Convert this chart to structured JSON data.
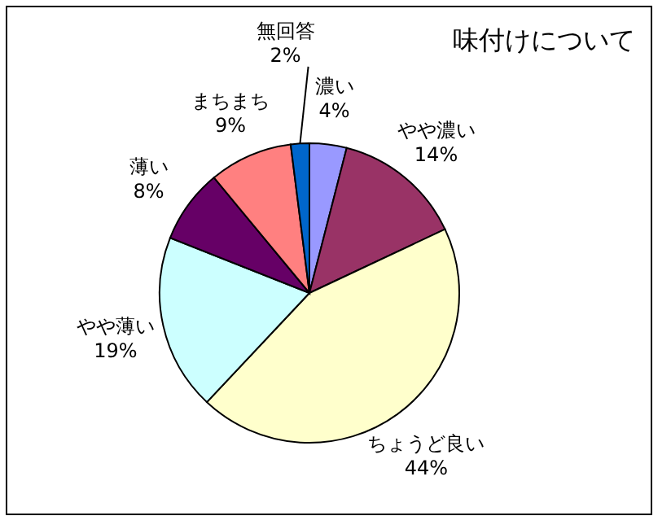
{
  "chart_data": {
    "type": "pie",
    "title": "味付けについて",
    "categories": [
      "濃い",
      "やや濃い",
      "ちょうど良い",
      "やや薄い",
      "薄い",
      "まちまち",
      "無回答"
    ],
    "values": [
      4,
      14,
      44,
      19,
      8,
      9,
      2
    ],
    "value_labels": [
      "4%",
      "14%",
      "44%",
      "19%",
      "8%",
      "9%",
      "2%"
    ],
    "colors": [
      "#9999ff",
      "#993366",
      "#ffffcc",
      "#ccffff",
      "#660066",
      "#ff8080",
      "#0066cc"
    ]
  }
}
